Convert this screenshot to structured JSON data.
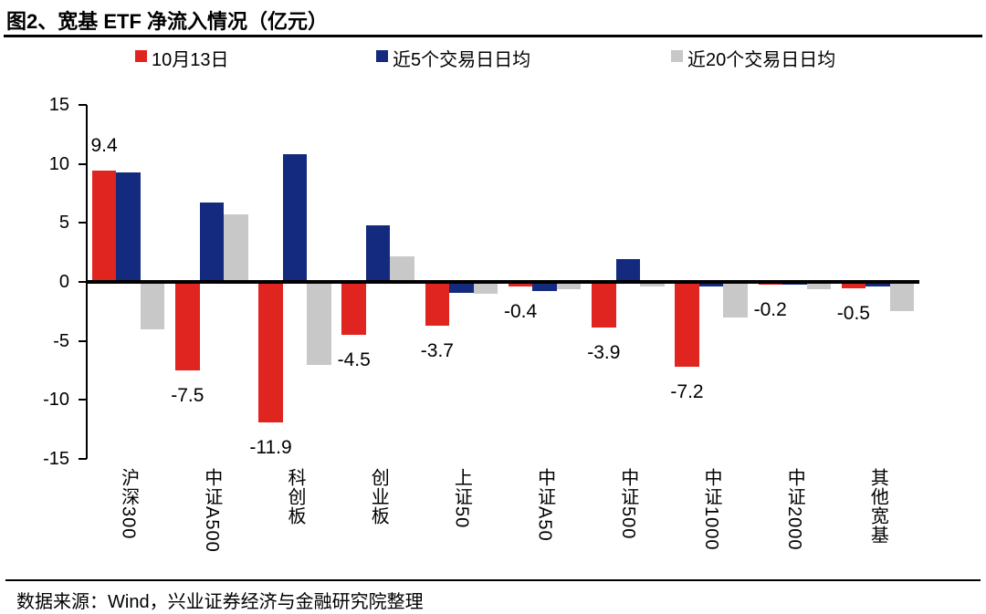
{
  "title": "图2、宽基 ETF 净流入情况（亿元）",
  "source": "数据来源：Wind，兴业证券经济与金融研究院整理",
  "chart_data": {
    "type": "bar",
    "title": "图2、宽基 ETF 净流入情况（亿元）",
    "unit": "亿元",
    "categories": [
      "沪深300",
      "中证A500",
      "科创板",
      "创业板",
      "上证50",
      "中证A50",
      "中证500",
      "中证1000",
      "中证2000",
      "其他宽基"
    ],
    "series": [
      {
        "name": "10月13日",
        "color": "#e0241f",
        "values": [
          9.4,
          -7.5,
          -11.9,
          -4.5,
          -3.7,
          -0.4,
          -3.9,
          -7.2,
          -0.2,
          -0.5
        ],
        "labels": [
          "9.4",
          "-7.5",
          "-11.9",
          "-4.5",
          "-3.7",
          "-0.4",
          "-3.9",
          "-7.2",
          "-0.2",
          "-0.5"
        ]
      },
      {
        "name": "近5个交易日日均",
        "color": "#132a7e",
        "values": [
          9.3,
          6.7,
          10.8,
          4.8,
          -0.9,
          -0.8,
          1.9,
          -0.4,
          -0.2,
          -0.4
        ]
      },
      {
        "name": "近20个交易日日均",
        "color": "#c8c8c8",
        "values": [
          -4.0,
          5.7,
          -7.0,
          2.2,
          -1.0,
          -0.6,
          -0.4,
          -3.0,
          -0.6,
          -2.5
        ]
      }
    ],
    "ylim": [
      -15,
      15
    ],
    "yticks": [
      15,
      10,
      5,
      0,
      -5,
      -10,
      -15
    ],
    "legend_position": "top",
    "grid": false
  }
}
